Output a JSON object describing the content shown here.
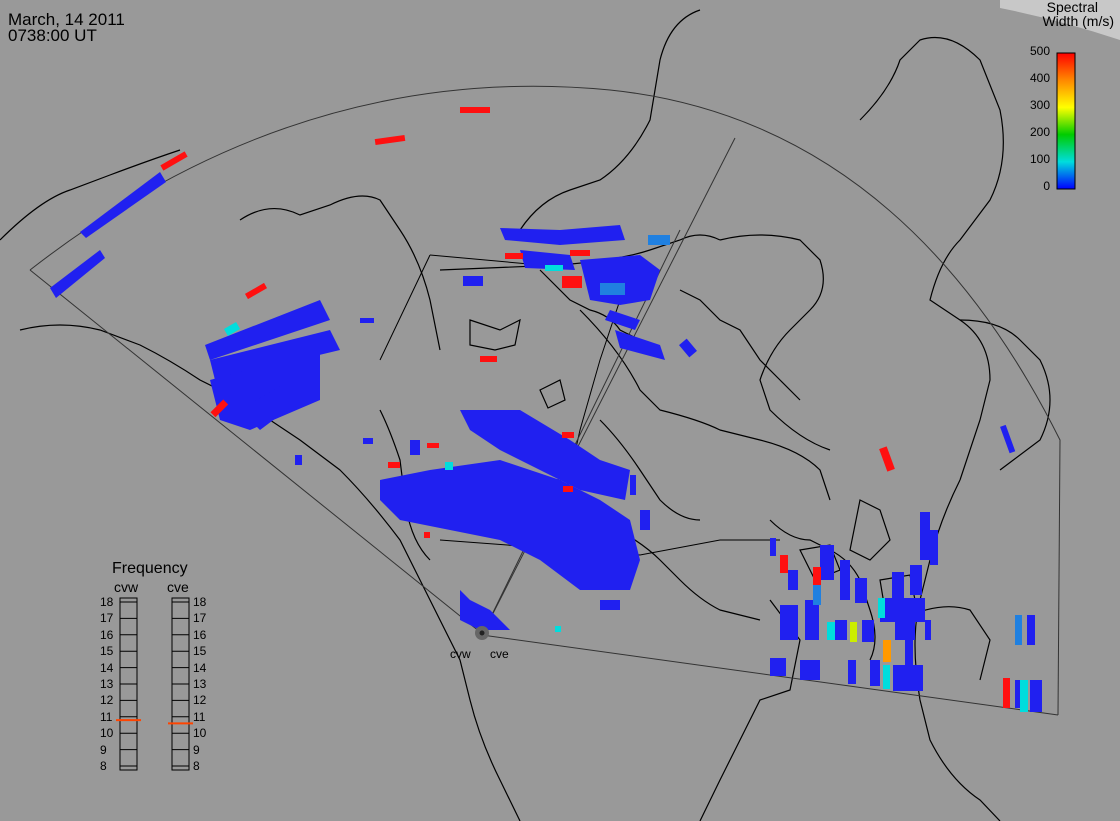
{
  "timestamp": {
    "date": "March, 14 2011",
    "time": "0738:00 UT"
  },
  "colorbar": {
    "title_line1": "Spectral",
    "title_line2": "Width (m/s)",
    "ticks": [
      "500",
      "400",
      "300",
      "200",
      "100",
      "0"
    ],
    "colors": [
      "#ff0000",
      "#ff8800",
      "#ffff00",
      "#00cc00",
      "#00dddd",
      "#0000ff"
    ]
  },
  "frequency_panel": {
    "title": "Frequency",
    "radars": [
      "cvw",
      "cve"
    ],
    "ticks": [
      "18",
      "17",
      "16",
      "15",
      "14",
      "13",
      "12",
      "11",
      "10",
      "9",
      "8"
    ],
    "cvw_value": 10.8,
    "cve_value": 10.6,
    "indicator_color": "#ff4400"
  },
  "radar_sites": {
    "west": "cvw",
    "east": "cve"
  },
  "colors": {
    "background": "#999999",
    "ocean": "#b8b8b8",
    "coastline": "#000000",
    "low_width": "#2020f0",
    "medium_width": "#00e0e0",
    "high_width": "#ff1010"
  }
}
